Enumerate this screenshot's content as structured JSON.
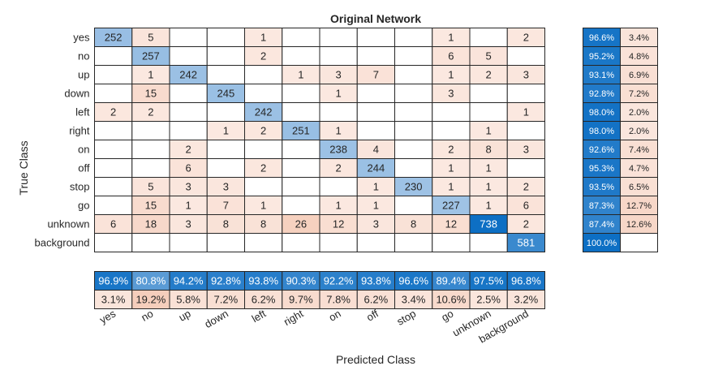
{
  "chart_data": {
    "type": "heatmap",
    "title": "Original Network",
    "xlabel": "Predicted Class",
    "ylabel": "True Class",
    "classes": [
      "yes",
      "no",
      "up",
      "down",
      "left",
      "right",
      "on",
      "off",
      "stop",
      "go",
      "unknown",
      "background"
    ],
    "matrix": [
      [
        252,
        5,
        null,
        null,
        1,
        null,
        null,
        null,
        null,
        1,
        null,
        2
      ],
      [
        null,
        257,
        null,
        null,
        2,
        null,
        null,
        null,
        null,
        6,
        5,
        null
      ],
      [
        null,
        1,
        242,
        null,
        null,
        1,
        3,
        7,
        null,
        1,
        2,
        3
      ],
      [
        null,
        15,
        null,
        245,
        null,
        null,
        1,
        null,
        null,
        3,
        null,
        null
      ],
      [
        2,
        2,
        null,
        null,
        242,
        null,
        null,
        null,
        null,
        null,
        null,
        1
      ],
      [
        null,
        null,
        null,
        1,
        2,
        251,
        1,
        null,
        null,
        null,
        1,
        null
      ],
      [
        null,
        null,
        2,
        null,
        null,
        null,
        238,
        4,
        null,
        2,
        8,
        3
      ],
      [
        null,
        null,
        6,
        null,
        2,
        null,
        2,
        244,
        null,
        1,
        1,
        null
      ],
      [
        null,
        5,
        3,
        3,
        null,
        null,
        null,
        1,
        230,
        1,
        1,
        2
      ],
      [
        null,
        15,
        1,
        7,
        1,
        null,
        1,
        1,
        null,
        227,
        1,
        6
      ],
      [
        6,
        18,
        3,
        8,
        8,
        26,
        12,
        3,
        8,
        12,
        738,
        2
      ],
      [
        null,
        null,
        null,
        null,
        null,
        null,
        null,
        null,
        null,
        null,
        null,
        581
      ]
    ],
    "row_summary": [
      [
        "96.6%",
        "3.4%"
      ],
      [
        "95.2%",
        "4.8%"
      ],
      [
        "93.1%",
        "6.9%"
      ],
      [
        "92.8%",
        "7.2%"
      ],
      [
        "98.0%",
        "2.0%"
      ],
      [
        "98.0%",
        "2.0%"
      ],
      [
        "92.6%",
        "7.4%"
      ],
      [
        "95.3%",
        "4.7%"
      ],
      [
        "93.5%",
        "6.5%"
      ],
      [
        "87.3%",
        "12.7%"
      ],
      [
        "87.4%",
        "12.6%"
      ],
      [
        "100.0%",
        ""
      ]
    ],
    "column_summary": {
      "correct": [
        "96.9%",
        "80.8%",
        "94.2%",
        "92.8%",
        "93.8%",
        "90.3%",
        "92.2%",
        "93.8%",
        "96.6%",
        "89.4%",
        "97.5%",
        "96.8%"
      ],
      "incorrect": [
        "3.1%",
        "19.2%",
        "5.8%",
        "7.2%",
        "6.2%",
        "9.7%",
        "7.8%",
        "6.2%",
        "3.4%",
        "10.6%",
        "2.5%",
        "3.2%"
      ]
    },
    "colors": {
      "diag_light": "#a7c7e7",
      "diag_dark": "#0d6fc4",
      "offdiag_light": "#fbe9e1",
      "offdiag_dark": "#f5cdba",
      "grid": "#262626",
      "text_dark": "#262626",
      "text_light": "#ffffff"
    }
  }
}
